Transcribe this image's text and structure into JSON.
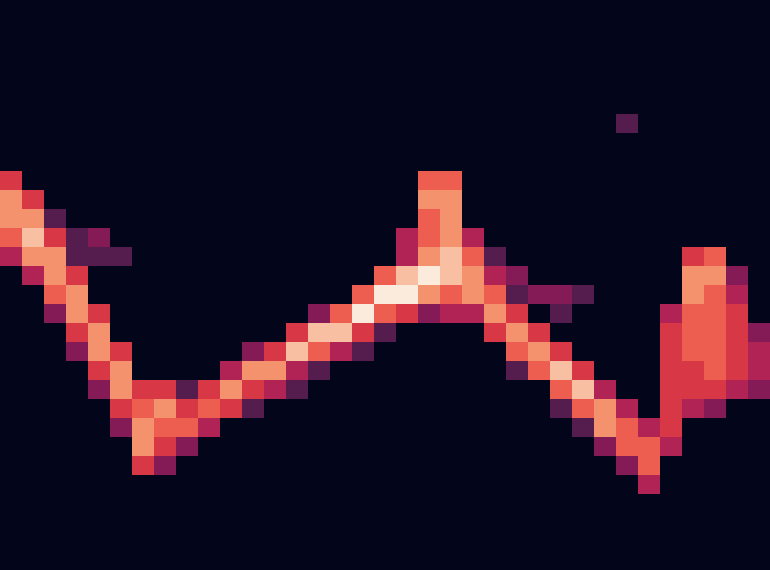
{
  "chart_data": {
    "type": "heatmap",
    "tick_labels": false,
    "zlim": [
      0,
      9
    ],
    "cells": [
      [
        0,
        0,
        0,
        0,
        0,
        0,
        0,
        0,
        0,
        0,
        0,
        0,
        0,
        0,
        0,
        0,
        0,
        0,
        0,
        0,
        0,
        0,
        0,
        0,
        0,
        0,
        0,
        0,
        0,
        0,
        0,
        0,
        0,
        0,
        0
      ],
      [
        0,
        0,
        0,
        0,
        0,
        0,
        0,
        0,
        0,
        0,
        0,
        0,
        0,
        0,
        0,
        0,
        0,
        0,
        0,
        0,
        0,
        0,
        0,
        0,
        0,
        0,
        0,
        0,
        0,
        0,
        0,
        0,
        0,
        0,
        0
      ],
      [
        0,
        0,
        0,
        0,
        0,
        0,
        0,
        0,
        0,
        0,
        0,
        0,
        0,
        0,
        0,
        0,
        0,
        0,
        0,
        0,
        0,
        0,
        0,
        0,
        0,
        0,
        0,
        0,
        0,
        0,
        0,
        0,
        0,
        0,
        0
      ],
      [
        0,
        0,
        0,
        0,
        0,
        0,
        0,
        0,
        0,
        0,
        0,
        0,
        0,
        0,
        0,
        0,
        0,
        0,
        0,
        0,
        0,
        0,
        0,
        0,
        0,
        0,
        0,
        0,
        0,
        0,
        0,
        0,
        0,
        0,
        0
      ],
      [
        0,
        0,
        0,
        0,
        0,
        0,
        0,
        0,
        0,
        0,
        0,
        0,
        0,
        0,
        0,
        0,
        0,
        0,
        0,
        0,
        0,
        0,
        0,
        0,
        0,
        0,
        0,
        0,
        0,
        0,
        0,
        0,
        0,
        0,
        0
      ],
      [
        0,
        0,
        0,
        0,
        0,
        0,
        0,
        0,
        0,
        0,
        0,
        0,
        0,
        0,
        0,
        0,
        0,
        0,
        0,
        0,
        0,
        0,
        0,
        0,
        0,
        0,
        0,
        0,
        0,
        0,
        0,
        0,
        0,
        0,
        0
      ],
      [
        0,
        0,
        0,
        0,
        0,
        0,
        0,
        0,
        0,
        0,
        0,
        0,
        0,
        0,
        0,
        0,
        0,
        0,
        0,
        0,
        0,
        0,
        0,
        0,
        0,
        0,
        0,
        0,
        2,
        0,
        0,
        0,
        0,
        0,
        0
      ],
      [
        0,
        0,
        0,
        0,
        0,
        0,
        0,
        0,
        0,
        0,
        0,
        0,
        0,
        0,
        0,
        0,
        0,
        0,
        0,
        0,
        0,
        0,
        0,
        0,
        0,
        0,
        0,
        0,
        0,
        0,
        0,
        0,
        0,
        0,
        0
      ],
      [
        0,
        0,
        0,
        0,
        0,
        0,
        0,
        0,
        0,
        0,
        0,
        0,
        0,
        0,
        0,
        0,
        0,
        0,
        0,
        0,
        0,
        0,
        0,
        0,
        0,
        0,
        0,
        0,
        0,
        0,
        0,
        0,
        0,
        0,
        0
      ],
      [
        5,
        0,
        0,
        0,
        0,
        0,
        0,
        0,
        0,
        0,
        0,
        0,
        0,
        0,
        0,
        0,
        0,
        0,
        0,
        6,
        6,
        0,
        0,
        0,
        0,
        0,
        0,
        0,
        0,
        0,
        0,
        0,
        0,
        0,
        0
      ],
      [
        7,
        5,
        0,
        0,
        0,
        0,
        0,
        0,
        0,
        0,
        0,
        0,
        0,
        0,
        0,
        0,
        0,
        0,
        0,
        7,
        7,
        0,
        0,
        0,
        0,
        0,
        0,
        0,
        0,
        0,
        0,
        0,
        0,
        0,
        0
      ],
      [
        7,
        7,
        2,
        0,
        0,
        0,
        0,
        0,
        0,
        0,
        0,
        0,
        0,
        0,
        0,
        0,
        0,
        0,
        0,
        6,
        7,
        0,
        0,
        0,
        0,
        0,
        0,
        0,
        0,
        0,
        0,
        0,
        0,
        0,
        0
      ],
      [
        6,
        8,
        5,
        2,
        3,
        0,
        0,
        0,
        0,
        0,
        0,
        0,
        0,
        0,
        0,
        0,
        0,
        0,
        4,
        6,
        7,
        4,
        0,
        0,
        0,
        0,
        0,
        0,
        0,
        0,
        0,
        0,
        0,
        0,
        0
      ],
      [
        4,
        7,
        7,
        2,
        2,
        2,
        0,
        0,
        0,
        0,
        0,
        0,
        0,
        0,
        0,
        0,
        0,
        0,
        4,
        7,
        8,
        6,
        2,
        0,
        0,
        0,
        0,
        0,
        0,
        0,
        0,
        5,
        6,
        0,
        0
      ],
      [
        0,
        4,
        7,
        5,
        0,
        0,
        0,
        0,
        0,
        0,
        0,
        0,
        0,
        0,
        0,
        0,
        0,
        6,
        8,
        9,
        8,
        7,
        4,
        3,
        0,
        0,
        0,
        0,
        0,
        0,
        0,
        7,
        7,
        3,
        0
      ],
      [
        0,
        0,
        6,
        7,
        0,
        0,
        0,
        0,
        0,
        0,
        0,
        0,
        0,
        0,
        0,
        0,
        6,
        9,
        9,
        7,
        6,
        7,
        6,
        2,
        3,
        3,
        2,
        0,
        0,
        0,
        0,
        7,
        6,
        4,
        0
      ],
      [
        0,
        0,
        3,
        7,
        5,
        0,
        0,
        0,
        0,
        0,
        0,
        0,
        0,
        0,
        3,
        6,
        9,
        6,
        5,
        3,
        4,
        4,
        7,
        5,
        0,
        2,
        0,
        0,
        0,
        0,
        4,
        6,
        6,
        5,
        0
      ],
      [
        0,
        0,
        0,
        5,
        7,
        0,
        0,
        0,
        0,
        0,
        0,
        0,
        0,
        5,
        8,
        8,
        5,
        2,
        0,
        0,
        0,
        0,
        5,
        7,
        5,
        0,
        0,
        0,
        0,
        0,
        5,
        6,
        6,
        5,
        3
      ],
      [
        0,
        0,
        0,
        3,
        7,
        5,
        0,
        0,
        0,
        0,
        0,
        3,
        5,
        8,
        6,
        4,
        2,
        0,
        0,
        0,
        0,
        0,
        0,
        6,
        7,
        5,
        0,
        0,
        0,
        0,
        5,
        6,
        6,
        5,
        4
      ],
      [
        0,
        0,
        0,
        0,
        5,
        7,
        0,
        0,
        0,
        0,
        4,
        7,
        7,
        4,
        2,
        0,
        0,
        0,
        0,
        0,
        0,
        0,
        0,
        2,
        6,
        8,
        5,
        0,
        0,
        0,
        5,
        5,
        6,
        5,
        4
      ],
      [
        0,
        0,
        0,
        0,
        3,
        7,
        5,
        5,
        2,
        5,
        7,
        5,
        4,
        2,
        0,
        0,
        0,
        0,
        0,
        0,
        0,
        0,
        0,
        0,
        0,
        6,
        8,
        4,
        0,
        0,
        5,
        5,
        5,
        4,
        3
      ],
      [
        0,
        0,
        0,
        0,
        0,
        5,
        6,
        7,
        5,
        6,
        5,
        2,
        0,
        0,
        0,
        0,
        0,
        0,
        0,
        0,
        0,
        0,
        0,
        0,
        0,
        2,
        6,
        7,
        4,
        0,
        5,
        4,
        3,
        0,
        0
      ],
      [
        0,
        0,
        0,
        0,
        0,
        3,
        7,
        6,
        6,
        4,
        0,
        0,
        0,
        0,
        0,
        0,
        0,
        0,
        0,
        0,
        0,
        0,
        0,
        0,
        0,
        0,
        2,
        7,
        6,
        4,
        5,
        0,
        0,
        0,
        0
      ],
      [
        0,
        0,
        0,
        0,
        0,
        0,
        7,
        5,
        3,
        0,
        0,
        0,
        0,
        0,
        0,
        0,
        0,
        0,
        0,
        0,
        0,
        0,
        0,
        0,
        0,
        0,
        0,
        3,
        6,
        6,
        4,
        0,
        0,
        0,
        0
      ],
      [
        0,
        0,
        0,
        0,
        0,
        0,
        5,
        3,
        0,
        0,
        0,
        0,
        0,
        0,
        0,
        0,
        0,
        0,
        0,
        0,
        0,
        0,
        0,
        0,
        0,
        0,
        0,
        0,
        3,
        6,
        0,
        0,
        0,
        0,
        0
      ],
      [
        0,
        0,
        0,
        0,
        0,
        0,
        0,
        0,
        0,
        0,
        0,
        0,
        0,
        0,
        0,
        0,
        0,
        0,
        0,
        0,
        0,
        0,
        0,
        0,
        0,
        0,
        0,
        0,
        0,
        4,
        0,
        0,
        0,
        0,
        0
      ],
      [
        0,
        0,
        0,
        0,
        0,
        0,
        0,
        0,
        0,
        0,
        0,
        0,
        0,
        0,
        0,
        0,
        0,
        0,
        0,
        0,
        0,
        0,
        0,
        0,
        0,
        0,
        0,
        0,
        0,
        0,
        0,
        0,
        0,
        0,
        0
      ],
      [
        0,
        0,
        0,
        0,
        0,
        0,
        0,
        0,
        0,
        0,
        0,
        0,
        0,
        0,
        0,
        0,
        0,
        0,
        0,
        0,
        0,
        0,
        0,
        0,
        0,
        0,
        0,
        0,
        0,
        0,
        0,
        0,
        0,
        0,
        0
      ],
      [
        0,
        0,
        0,
        0,
        0,
        0,
        0,
        0,
        0,
        0,
        0,
        0,
        0,
        0,
        0,
        0,
        0,
        0,
        0,
        0,
        0,
        0,
        0,
        0,
        0,
        0,
        0,
        0,
        0,
        0,
        0,
        0,
        0,
        0,
        0
      ],
      [
        0,
        0,
        0,
        0,
        0,
        0,
        0,
        0,
        0,
        0,
        0,
        0,
        0,
        0,
        0,
        0,
        0,
        0,
        0,
        0,
        0,
        0,
        0,
        0,
        0,
        0,
        0,
        0,
        0,
        0,
        0,
        0,
        0,
        0,
        0
      ]
    ]
  }
}
